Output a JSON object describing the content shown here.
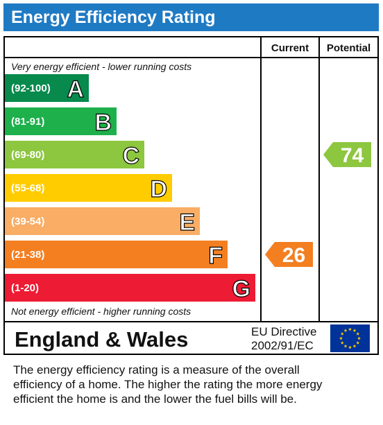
{
  "title": "Energy Efficiency Rating",
  "columns": {
    "current": "Current",
    "potential": "Potential"
  },
  "top_note": "Very energy efficient - lower running costs",
  "bottom_note": "Not energy efficient - higher running costs",
  "footer": {
    "region": "England & Wales",
    "directive_line1": "EU Directive",
    "directive_line2": "2002/91/EC"
  },
  "description": [
    "The energy efficiency rating is a measure of the overall",
    "efficiency of a home.  The higher the rating the more energy",
    "efficient the home is and the lower the fuel bills will be."
  ],
  "colors": {
    "A": "#078a4c",
    "B": "#1db04b",
    "C": "#8dc63f",
    "D": "#ffcc00",
    "E": "#f9ad65",
    "F": "#f37f21",
    "G": "#ed1b33",
    "title": "#1f7ac4",
    "eu_flag": "#003399"
  },
  "chart_data": {
    "type": "bar",
    "categories": [
      "A",
      "B",
      "C",
      "D",
      "E",
      "F",
      "G"
    ],
    "ranges": [
      "(92-100)",
      "(81-91)",
      "(69-80)",
      "(55-68)",
      "(39-54)",
      "(21-38)",
      "(1-20)"
    ],
    "current": {
      "value": 26,
      "band": "F"
    },
    "potential": {
      "value": 74,
      "band": "C"
    }
  }
}
